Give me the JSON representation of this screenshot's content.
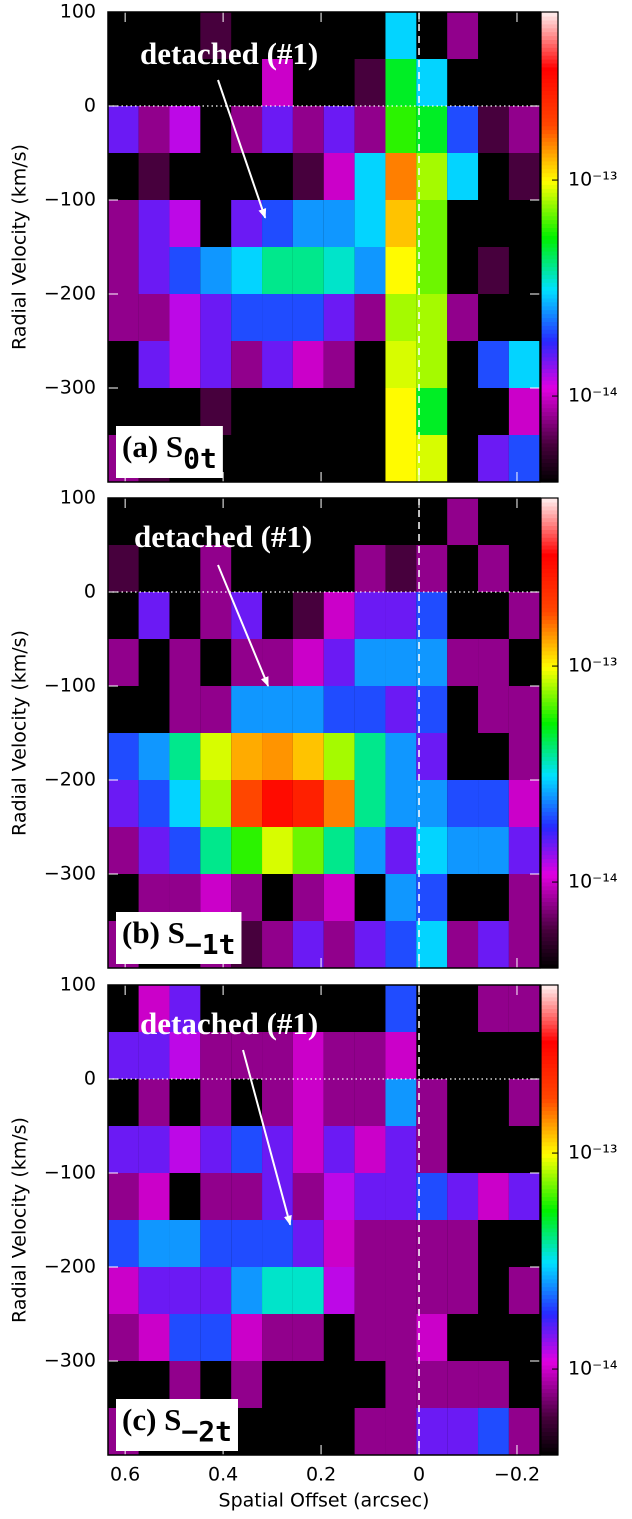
{
  "chart_data": [
    {
      "type": "heatmap",
      "ylabel": "Radial Velocity (km/s)",
      "x": [
        0.604,
        0.541,
        0.478,
        0.415,
        0.352,
        0.289,
        0.226,
        0.163,
        0.1,
        0.037,
        -0.026,
        -0.089,
        -0.152,
        -0.215
      ],
      "y": [
        75,
        25,
        -25,
        -75,
        -125,
        -175,
        -225,
        -275,
        -325,
        -375
      ],
      "z": [
        [
          null,
          null,
          null,
          6e-15,
          null,
          null,
          null,
          null,
          null,
          3e-14,
          null,
          8e-15,
          null,
          null
        ],
        [
          null,
          null,
          null,
          null,
          null,
          1e-14,
          null,
          null,
          6e-15,
          5e-14,
          3e-14,
          null,
          null,
          null
        ],
        [
          1.5e-14,
          8e-15,
          1.2e-14,
          null,
          8e-15,
          1.5e-14,
          8e-15,
          1.5e-14,
          8e-15,
          6e-14,
          5e-14,
          2e-14,
          6e-15,
          8e-15
        ],
        [
          null,
          6e-15,
          null,
          null,
          null,
          null,
          6e-15,
          1e-14,
          3e-14,
          1.5e-13,
          8e-14,
          3e-14,
          null,
          6e-15
        ],
        [
          8e-15,
          1.5e-14,
          1.2e-14,
          null,
          1.5e-14,
          2e-14,
          2.5e-14,
          2.5e-14,
          3e-14,
          1.2e-13,
          7e-14,
          null,
          null,
          null
        ],
        [
          8e-15,
          1.5e-14,
          2e-14,
          2.5e-14,
          3e-14,
          4e-14,
          4e-14,
          3.5e-14,
          2.5e-14,
          1e-13,
          7e-14,
          null,
          6e-15,
          null
        ],
        [
          8e-15,
          8e-15,
          1.2e-14,
          1.5e-14,
          2e-14,
          2e-14,
          2e-14,
          1.5e-14,
          8e-15,
          8e-14,
          8e-14,
          8e-15,
          null,
          null
        ],
        [
          null,
          1.5e-14,
          1.2e-14,
          1.5e-14,
          8e-15,
          1.5e-14,
          1e-14,
          8e-15,
          null,
          9e-14,
          8e-14,
          null,
          2e-14,
          3e-14
        ],
        [
          null,
          null,
          null,
          6e-15,
          null,
          null,
          null,
          null,
          null,
          1e-13,
          5e-14,
          null,
          null,
          1e-14
        ],
        [
          8e-15,
          6e-15,
          null,
          null,
          null,
          null,
          null,
          null,
          null,
          1e-13,
          9e-14,
          null,
          1.5e-14,
          2e-14
        ]
      ],
      "xlim": [
        0.635,
        -0.247
      ],
      "ylim": [
        -400,
        100
      ],
      "xticks": [
        0.6,
        0.4,
        0.2,
        0,
        -0.2
      ],
      "yticks": [
        100,
        0,
        {
          "value": -100,
          "label": "−100"
        },
        {
          "value": -200,
          "label": "−200"
        },
        {
          "value": -300,
          "label": "−300"
        }
      ],
      "clim": [
        4e-15,
        6e-13
      ],
      "log_color": true,
      "cticks": [
        {
          "value": 1e-13,
          "label": "10⁻¹³"
        },
        {
          "value": 1e-14,
          "label": "10⁻¹⁴"
        }
      ],
      "hline": 0,
      "vline": 0,
      "annotation": {
        "text": "detached (#1)",
        "xy": [
          0.314,
          -119
        ]
      },
      "panel_label": {
        "text": "(a) S",
        "subscript": "0t"
      }
    },
    {
      "type": "heatmap",
      "ylabel": "Radial Velocity (km/s)",
      "x": [
        0.604,
        0.541,
        0.478,
        0.415,
        0.352,
        0.289,
        0.226,
        0.163,
        0.1,
        0.037,
        -0.026,
        -0.089,
        -0.152,
        -0.215
      ],
      "y": [
        75,
        25,
        -25,
        -75,
        -125,
        -175,
        -225,
        -275,
        -325,
        -375
      ],
      "z": [
        [
          null,
          null,
          null,
          null,
          null,
          null,
          null,
          null,
          null,
          null,
          null,
          8e-15,
          null,
          null
        ],
        [
          6e-15,
          null,
          null,
          8e-15,
          null,
          null,
          null,
          null,
          8e-15,
          6e-15,
          8e-15,
          null,
          8e-15,
          null
        ],
        [
          null,
          1.5e-14,
          null,
          8e-15,
          1.5e-14,
          null,
          6e-15,
          1e-14,
          1.5e-14,
          1.5e-14,
          2e-14,
          null,
          null,
          8e-15
        ],
        [
          8e-15,
          null,
          8e-15,
          null,
          8e-15,
          8e-15,
          1e-14,
          1.5e-14,
          2.5e-14,
          2.5e-14,
          2.5e-14,
          8e-15,
          8e-15,
          null
        ],
        [
          null,
          null,
          8e-15,
          8e-15,
          2.5e-14,
          2.5e-14,
          2.5e-14,
          2e-14,
          2e-14,
          1.5e-14,
          2e-14,
          null,
          8e-15,
          8e-15
        ],
        [
          2e-14,
          2.5e-14,
          4e-14,
          9e-14,
          1.3e-13,
          1.4e-13,
          1.2e-13,
          8e-14,
          4e-14,
          2.5e-14,
          1.5e-14,
          null,
          null,
          8e-15
        ],
        [
          1.5e-14,
          2e-14,
          3e-14,
          8e-14,
          1.8e-13,
          3e-13,
          2.5e-13,
          1.5e-13,
          4e-14,
          2.5e-14,
          2.5e-14,
          2e-14,
          2e-14,
          1e-14
        ],
        [
          8e-15,
          1.5e-14,
          2e-14,
          4e-14,
          6e-14,
          9e-14,
          7e-14,
          4e-14,
          2.5e-14,
          1.5e-14,
          3e-14,
          2.5e-14,
          2.5e-14,
          1.5e-14
        ],
        [
          null,
          8e-15,
          8e-15,
          1e-14,
          8e-15,
          null,
          8e-15,
          1e-14,
          null,
          2.5e-14,
          2e-14,
          null,
          null,
          8e-15
        ],
        [
          8e-15,
          null,
          null,
          8e-15,
          6e-15,
          8e-15,
          1.5e-14,
          8e-15,
          1.5e-14,
          2e-14,
          3e-14,
          8e-15,
          1.5e-14,
          8e-15
        ]
      ],
      "xlim": [
        0.635,
        -0.247
      ],
      "ylim": [
        -400,
        100
      ],
      "xticks": [
        0.6,
        0.4,
        0.2,
        0,
        -0.2
      ],
      "yticks": [
        100,
        0,
        {
          "value": -100,
          "label": "−100"
        },
        {
          "value": -200,
          "label": "−200"
        },
        {
          "value": -300,
          "label": "−300"
        }
      ],
      "clim": [
        4e-15,
        6e-13
      ],
      "log_color": true,
      "cticks": [
        {
          "value": 1e-13,
          "label": "10⁻¹³"
        },
        {
          "value": 1e-14,
          "label": "10⁻¹⁴"
        }
      ],
      "hline": 0,
      "vline": 0,
      "annotation": {
        "text": "detached (#1)",
        "xy": [
          0.308,
          -100
        ]
      },
      "panel_label": {
        "text": "(b) S",
        "subscript": "−1t"
      }
    },
    {
      "type": "heatmap",
      "ylabel": "Radial Velocity (km/s)",
      "xlabel": "Spatial Offset (arcsec)",
      "x": [
        0.604,
        0.541,
        0.478,
        0.415,
        0.352,
        0.289,
        0.226,
        0.163,
        0.1,
        0.037,
        -0.026,
        -0.089,
        -0.152,
        -0.215
      ],
      "y": [
        75,
        25,
        -25,
        -75,
        -125,
        -175,
        -225,
        -275,
        -325,
        -375
      ],
      "z": [
        [
          null,
          1e-14,
          1.5e-14,
          null,
          null,
          null,
          null,
          null,
          null,
          2e-14,
          null,
          null,
          8e-15,
          8e-15
        ],
        [
          1.5e-14,
          1.5e-14,
          1.2e-14,
          8e-15,
          8e-15,
          8e-15,
          1e-14,
          8e-15,
          8e-15,
          1e-14,
          null,
          null,
          null,
          null
        ],
        [
          null,
          8e-15,
          null,
          8e-15,
          null,
          8e-15,
          1e-14,
          8e-15,
          8e-15,
          2.5e-14,
          8e-15,
          null,
          null,
          8e-15
        ],
        [
          1.5e-14,
          1.5e-14,
          1.2e-14,
          1.5e-14,
          2e-14,
          1.5e-14,
          1e-14,
          1.5e-14,
          1e-14,
          1.5e-14,
          8e-15,
          null,
          null,
          null
        ],
        [
          8e-15,
          1e-14,
          null,
          8e-15,
          8e-15,
          1.5e-14,
          8e-15,
          1.2e-14,
          1.5e-14,
          1.5e-14,
          2e-14,
          1.5e-14,
          1e-14,
          1.5e-14
        ],
        [
          2e-14,
          2.5e-14,
          2.5e-14,
          2e-14,
          2e-14,
          2e-14,
          1.5e-14,
          1e-14,
          8e-15,
          8e-15,
          8e-15,
          8e-15,
          null,
          null
        ],
        [
          1e-14,
          1.5e-14,
          1.5e-14,
          1.5e-14,
          2.5e-14,
          3.5e-14,
          3.5e-14,
          1.2e-14,
          8e-15,
          8e-15,
          8e-15,
          8e-15,
          null,
          8e-15
        ],
        [
          8e-15,
          1e-14,
          2e-14,
          2e-14,
          1e-14,
          8e-15,
          8e-15,
          null,
          8e-15,
          8e-15,
          1e-14,
          null,
          null,
          null
        ],
        [
          null,
          null,
          8e-15,
          null,
          8e-15,
          null,
          null,
          null,
          null,
          8e-15,
          8e-15,
          8e-15,
          8e-15,
          null
        ],
        [
          8e-15,
          null,
          null,
          null,
          null,
          null,
          null,
          null,
          8e-15,
          8e-15,
          1.5e-14,
          1.5e-14,
          2e-14,
          8e-15
        ]
      ],
      "xlim": [
        0.635,
        -0.247
      ],
      "ylim": [
        -400,
        100
      ],
      "xticks": [
        0.6,
        0.4,
        0.2,
        0,
        {
          "value": -0.2,
          "label": "−0.2"
        }
      ],
      "yticks": [
        100,
        0,
        {
          "value": -100,
          "label": "−100"
        },
        {
          "value": -200,
          "label": "−200"
        },
        {
          "value": -300,
          "label": "−300"
        }
      ],
      "clim": [
        4e-15,
        6e-13
      ],
      "log_color": true,
      "cticks": [
        {
          "value": 1e-13,
          "label": "10⁻¹³"
        },
        {
          "value": 1e-14,
          "label": "10⁻¹⁴"
        }
      ],
      "hline": 0,
      "vline": 0,
      "annotation": {
        "text": "detached (#1)",
        "xy": [
          0.263,
          -155
        ]
      },
      "panel_label": {
        "text": "(c) S",
        "subscript": "−2t"
      }
    }
  ]
}
